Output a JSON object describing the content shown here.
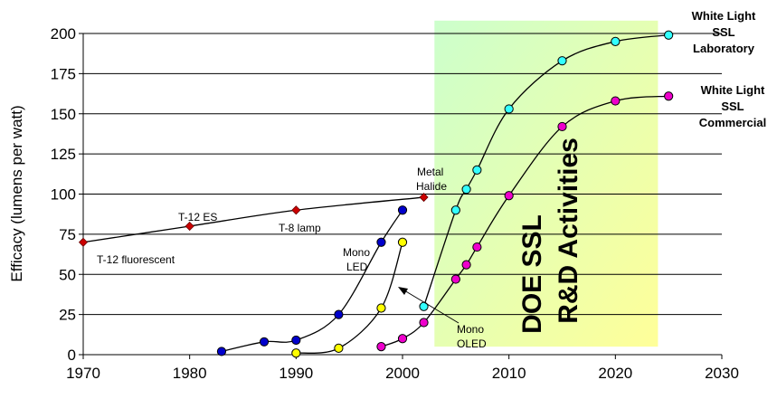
{
  "chart_data": {
    "type": "line",
    "title": "",
    "ylabel": "Efficacy (lumens per watt)",
    "xlabel": "",
    "xlim": [
      1970,
      2030
    ],
    "ylim": [
      0,
      200
    ],
    "xticks": [
      1970,
      1980,
      1990,
      2000,
      2010,
      2020,
      2030
    ],
    "yticks": [
      0,
      25,
      50,
      75,
      100,
      125,
      150,
      175,
      200
    ],
    "grid": "horizontal",
    "legend": "none",
    "series": [
      {
        "key": "fluorescent",
        "color": "#cc0000",
        "marker": "diamond",
        "points": [
          [
            1970,
            70
          ],
          [
            1980,
            80
          ],
          [
            1990,
            90
          ],
          [
            2002,
            98
          ]
        ]
      },
      {
        "key": "mono_led",
        "color": "#0000cc",
        "marker": "circle",
        "points": [
          [
            1983,
            2
          ],
          [
            1987,
            8
          ],
          [
            1990,
            9
          ],
          [
            1994,
            25
          ],
          [
            1998,
            70
          ],
          [
            2000,
            90
          ]
        ]
      },
      {
        "key": "mono_oled",
        "color": "#ffff00",
        "marker": "circle",
        "points": [
          [
            1990,
            1
          ],
          [
            1994,
            4
          ],
          [
            1998,
            29
          ],
          [
            2000,
            70
          ]
        ]
      },
      {
        "key": "ssl_lab",
        "color": "#33ffff",
        "marker": "circle",
        "points": [
          [
            2002,
            30
          ],
          [
            2005,
            90
          ],
          [
            2006,
            103
          ],
          [
            2007,
            115
          ],
          [
            2010,
            153
          ],
          [
            2015,
            183
          ],
          [
            2020,
            195
          ],
          [
            2025,
            199
          ]
        ]
      },
      {
        "key": "ssl_commercial",
        "color": "#ee00cc",
        "marker": "circle",
        "points": [
          [
            1998,
            5
          ],
          [
            2000,
            10
          ],
          [
            2002,
            20
          ],
          [
            2005,
            47
          ],
          [
            2006,
            56
          ],
          [
            2007,
            67
          ],
          [
            2010,
            99
          ],
          [
            2015,
            142
          ],
          [
            2020,
            158
          ],
          [
            2025,
            161
          ]
        ]
      }
    ],
    "annotations": {
      "t12_fluorescent": "T-12 fluorescent",
      "t12_es": "T-12 ES",
      "t8_lamp": "T-8 lamp",
      "metal": "Metal",
      "halide": "Halide",
      "mono_led_1": "Mono",
      "mono_led_2": "LED",
      "mono_oled_1": "Mono",
      "mono_oled_2": "OLED",
      "wl_lab_1": "White Light",
      "wl_lab_2": "SSL",
      "wl_lab_3": "Laboratory",
      "wl_com_1": "White Light",
      "wl_com_2": "SSL",
      "wl_com_3": "Commercial",
      "doe_1": "DOE SSL",
      "doe_2": "R&D Activities"
    },
    "region": {
      "x_range": [
        2003,
        2024
      ],
      "y_range": [
        5,
        208
      ],
      "colors": [
        "#ccffcc",
        "#ffff99"
      ]
    }
  }
}
